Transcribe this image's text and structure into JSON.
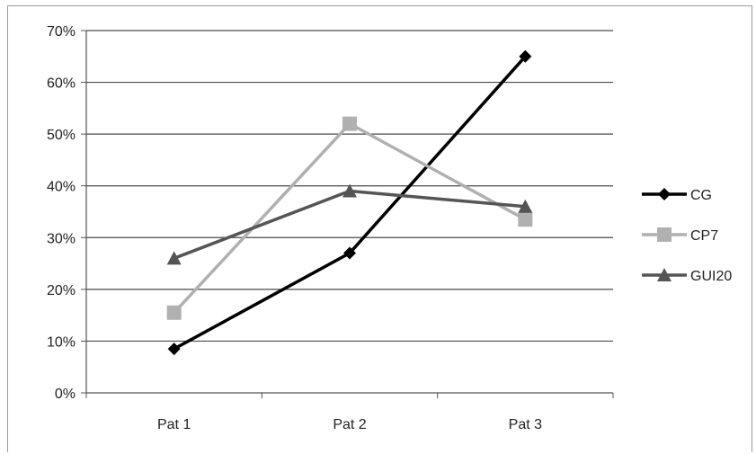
{
  "chart_data": {
    "type": "line",
    "categories": [
      "Pat 1",
      "Pat 2",
      "Pat 3"
    ],
    "series": [
      {
        "name": "CG",
        "values": [
          8.5,
          27,
          65
        ],
        "color": "#000000",
        "marker": "diamond"
      },
      {
        "name": "CP7",
        "values": [
          15.5,
          52,
          33.5
        ],
        "color": "#b0b0b0",
        "marker": "square"
      },
      {
        "name": "GUI20",
        "values": [
          26,
          39,
          36
        ],
        "color": "#555555",
        "marker": "triangle"
      }
    ],
    "ylim": [
      0,
      70
    ],
    "yticks": [
      "0%",
      "10%",
      "20%",
      "30%",
      "40%",
      "50%",
      "60%",
      "70%"
    ],
    "grid": true,
    "legend_position": "right"
  }
}
